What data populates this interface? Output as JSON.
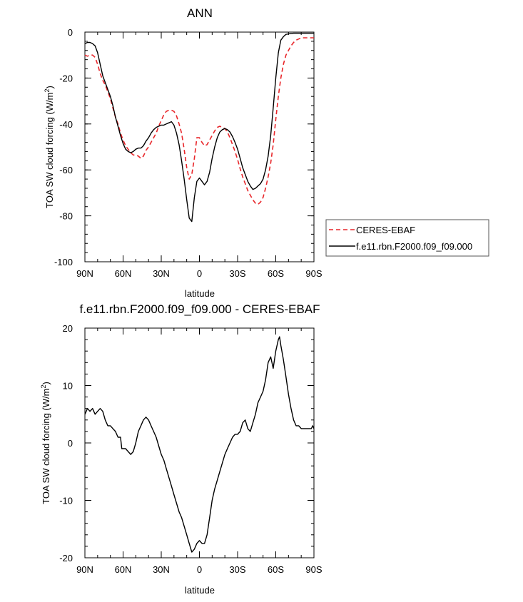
{
  "chart_data": [
    {
      "type": "line",
      "title": "ANN",
      "xlabel": "latitude",
      "ylabel_main": "TOA SW cloud forcing (W/m",
      "ylabel_sup": "2",
      "ylabel_tail": ")",
      "xlim": [
        90,
        -90
      ],
      "ylim": [
        -100,
        0
      ],
      "xticks": [
        90,
        60,
        30,
        0,
        -30,
        -60,
        -90
      ],
      "xticklabels": [
        "90N",
        "60N",
        "30N",
        "0",
        "30S",
        "60S",
        "90S"
      ],
      "yticks": [
        0,
        -20,
        -40,
        -60,
        -80,
        -100
      ],
      "yticklabels": [
        "0",
        "-20",
        "-40",
        "-60",
        "-80",
        "-100"
      ],
      "legend_position": "right",
      "series": [
        {
          "name": "CERES-EBAF",
          "color": "#e8262a",
          "dash": true,
          "x": [
            90,
            88,
            86,
            84,
            82,
            80,
            78,
            76,
            74,
            72,
            70,
            68,
            66,
            64,
            62,
            60,
            58,
            56,
            54,
            52,
            50,
            48,
            46,
            44,
            42,
            40,
            38,
            36,
            34,
            32,
            30,
            28,
            26,
            24,
            22,
            20,
            18,
            16,
            14,
            12,
            10,
            8,
            6,
            4,
            2,
            0,
            -2,
            -4,
            -6,
            -8,
            -10,
            -12,
            -14,
            -16,
            -18,
            -20,
            -22,
            -24,
            -26,
            -28,
            -30,
            -32,
            -34,
            -36,
            -38,
            -40,
            -42,
            -44,
            -46,
            -48,
            -50,
            -52,
            -54,
            -56,
            -58,
            -60,
            -62,
            -64,
            -66,
            -68,
            -70,
            -72,
            -74,
            -76,
            -78,
            -80,
            -82,
            -84,
            -86,
            -88,
            -90
          ],
          "y": [
            -10,
            -10.5,
            -10,
            -10,
            -11,
            -14,
            -18,
            -21,
            -23,
            -26,
            -29,
            -33,
            -37,
            -40,
            -44,
            -47,
            -49.5,
            -51,
            -52.5,
            -53.5,
            -53.5,
            -54,
            -55,
            -54,
            -51.5,
            -50,
            -48,
            -46,
            -44,
            -41,
            -38.5,
            -36,
            -34.5,
            -34,
            -34,
            -34.5,
            -36.5,
            -40,
            -44,
            -51,
            -59,
            -64,
            -62,
            -55,
            -46,
            -46,
            -48,
            -49.5,
            -49,
            -47,
            -45,
            -43,
            -41.5,
            -41,
            -41.5,
            -42,
            -43.5,
            -46,
            -49,
            -52,
            -55.5,
            -59.5,
            -63,
            -66,
            -69,
            -71,
            -73,
            -74.5,
            -75,
            -74,
            -72,
            -68,
            -63,
            -57,
            -49,
            -38,
            -28,
            -20,
            -14,
            -10,
            -8,
            -6,
            -4.5,
            -3.5,
            -3,
            -2.5,
            -2.5,
            -2.5,
            -2.5,
            -2.5,
            -2.5
          ]
        },
        {
          "name": "f.e11.rbn.F2000.f09_f09.000",
          "color": "#000000",
          "dash": false,
          "x": [
            90,
            88,
            86,
            84,
            82,
            80,
            78,
            76,
            74,
            72,
            70,
            68,
            66,
            64,
            62,
            60,
            58,
            56,
            54,
            52,
            50,
            48,
            46,
            44,
            42,
            40,
            38,
            36,
            34,
            32,
            30,
            28,
            26,
            24,
            22,
            20,
            18,
            16,
            14,
            12,
            10,
            8,
            6,
            4,
            2,
            0,
            -2,
            -4,
            -6,
            -8,
            -10,
            -12,
            -14,
            -16,
            -18,
            -20,
            -22,
            -24,
            -26,
            -28,
            -30,
            -32,
            -34,
            -36,
            -38,
            -40,
            -42,
            -44,
            -46,
            -48,
            -50,
            -52,
            -54,
            -56,
            -58,
            -60,
            -62,
            -64,
            -66,
            -68,
            -70,
            -72,
            -74,
            -76,
            -78,
            -80,
            -82,
            -84,
            -86,
            -88,
            -90
          ],
          "y": [
            -5,
            -4.5,
            -4.5,
            -5,
            -6,
            -9,
            -14,
            -19,
            -22,
            -25,
            -28,
            -32,
            -37,
            -41,
            -45,
            -48.5,
            -51,
            -52,
            -52.5,
            -52,
            -51,
            -50.5,
            -50.5,
            -49.5,
            -47.5,
            -46,
            -44,
            -42.5,
            -41.5,
            -41,
            -40.5,
            -40.5,
            -40,
            -39.5,
            -39,
            -40.5,
            -44,
            -49,
            -56,
            -64,
            -73,
            -81,
            -82.5,
            -72,
            -65,
            -63.5,
            -65,
            -66.5,
            -65,
            -61,
            -55,
            -50,
            -46,
            -43.5,
            -42.5,
            -42,
            -42.5,
            -43.5,
            -45.5,
            -48,
            -51,
            -55,
            -59,
            -62,
            -65,
            -67,
            -68.5,
            -68,
            -67,
            -66,
            -64,
            -60,
            -54,
            -45,
            -33,
            -20,
            -9,
            -3.5,
            -2,
            -1,
            -0.8,
            -0.6,
            -0.5,
            -0.5,
            -0.5,
            -0.5,
            -0.5,
            -0.5,
            -0.5,
            -0.5,
            -0.5
          ]
        }
      ]
    },
    {
      "type": "line",
      "title": "f.e11.rbn.F2000.f09_f09.000 - CERES-EBAF",
      "xlabel": "latitude",
      "ylabel_main": "TOA SW cloud forcing (W/m",
      "ylabel_sup": "2",
      "ylabel_tail": ")",
      "xlim": [
        90,
        -90
      ],
      "ylim": [
        -20,
        20
      ],
      "xticks": [
        90,
        60,
        30,
        0,
        -30,
        -60,
        -90
      ],
      "xticklabels": [
        "90N",
        "60N",
        "30N",
        "0",
        "30S",
        "60S",
        "90S"
      ],
      "yticks": [
        20,
        10,
        0,
        -10,
        -20
      ],
      "yticklabels": [
        "20",
        "10",
        "0",
        "-10",
        "-20"
      ],
      "series": [
        {
          "color": "#000000",
          "dash": false,
          "x": [
            90,
            88,
            86,
            84,
            82,
            80,
            78,
            76,
            74,
            72,
            70,
            68,
            66,
            64,
            62,
            61,
            60,
            58,
            56,
            54,
            52,
            50,
            48,
            46,
            44,
            42,
            40,
            38,
            36,
            34,
            32,
            30,
            28,
            26,
            24,
            22,
            20,
            18,
            16,
            14,
            12,
            10,
            8,
            6,
            4,
            2,
            0,
            -2,
            -4,
            -6,
            -8,
            -10,
            -12,
            -14,
            -16,
            -18,
            -20,
            -22,
            -24,
            -26,
            -28,
            -30,
            -32,
            -34,
            -36,
            -38,
            -40,
            -42,
            -44,
            -46,
            -48,
            -50,
            -52,
            -54,
            -56,
            -58,
            -60,
            -62,
            -63,
            -64,
            -66,
            -68,
            -70,
            -72,
            -74,
            -76,
            -78,
            -80,
            -82,
            -84,
            -86,
            -88,
            -89,
            -90
          ],
          "y": [
            5,
            6,
            5.5,
            6,
            5,
            5.5,
            6,
            5.5,
            4,
            3,
            3,
            2.5,
            2,
            1,
            1,
            -1,
            -1,
            -1,
            -1.5,
            -2,
            -1.5,
            0,
            2,
            3,
            4,
            4.5,
            4,
            3,
            2,
            1,
            -0.5,
            -2,
            -3,
            -4.5,
            -6,
            -7.5,
            -9,
            -10.5,
            -12,
            -13,
            -14.5,
            -16,
            -17.5,
            -19,
            -18.5,
            -17.5,
            -17,
            -17.5,
            -17.5,
            -16,
            -13,
            -10,
            -8,
            -6.5,
            -5,
            -3.5,
            -2,
            -1,
            0,
            1,
            1.5,
            1.5,
            2,
            3.5,
            4,
            2.5,
            2,
            3.5,
            5,
            7,
            8,
            9,
            11,
            14,
            15,
            13,
            16,
            18,
            18.5,
            17,
            14.5,
            11.5,
            8.5,
            6,
            4,
            3,
            3,
            2.5,
            2.5,
            2.5,
            2.5,
            2.5,
            3,
            2.5
          ]
        }
      ]
    }
  ]
}
